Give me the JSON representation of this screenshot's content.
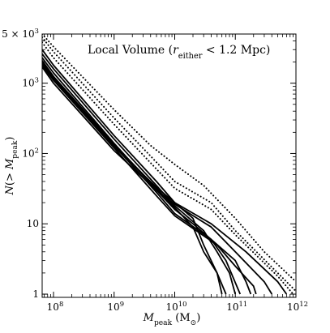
{
  "chart_data": {
    "type": "line",
    "title": "Local Volume ($r_{\\rm either}$ < 1.2 Mpc)",
    "title_parts": {
      "prefix": "Local Volume (",
      "var": "r",
      "sub": "either",
      "suffix": " < 1.2 Mpc)"
    },
    "xlabel": "M_peak (M_⊙)",
    "xlabel_parts": {
      "var": "M",
      "sub": "peak",
      "unit_open": " (M",
      "unit_sub": "⊙",
      "unit_close": ")"
    },
    "ylabel": "N(> M_peak)",
    "ylabel_parts": {
      "prefix": "N(> ",
      "var": "M",
      "sub": "peak",
      "suffix": ")"
    },
    "x_scale": "log",
    "y_scale": "log",
    "xlim": [
      65000000,
      1000000000000
    ],
    "ylim": [
      0.9,
      5000
    ],
    "x_ticks": [
      {
        "value": 100000000,
        "base": "10",
        "exp": "8"
      },
      {
        "value": 1000000000,
        "base": "10",
        "exp": "9"
      },
      {
        "value": 10000000000,
        "base": "10",
        "exp": "10"
      },
      {
        "value": 100000000000,
        "base": "10",
        "exp": "11"
      },
      {
        "value": 1000000000000,
        "base": "10",
        "exp": "12"
      }
    ],
    "y_ticks": [
      {
        "value": 1,
        "label": "1"
      },
      {
        "value": 10,
        "label": "10"
      },
      {
        "value": 100,
        "base": "10",
        "exp": "2"
      },
      {
        "value": 1000,
        "base": "10",
        "exp": "3"
      },
      {
        "value": 5000,
        "base": "5 × 10",
        "exp": "3"
      }
    ],
    "series": [
      {
        "style": "solid",
        "points": [
          [
            65000000.0,
            3000
          ],
          [
            100000000.0,
            1800
          ],
          [
            1000000000.0,
            180
          ],
          [
            5000000000.0,
            40
          ],
          [
            10000000000.0,
            20
          ],
          [
            20000000000.0,
            12
          ],
          [
            30000000000.0,
            5
          ],
          [
            50000000000.0,
            2
          ],
          [
            60000000000.0,
            1
          ]
        ]
      },
      {
        "style": "solid",
        "points": [
          [
            65000000.0,
            2600
          ],
          [
            100000000.0,
            1600
          ],
          [
            1000000000.0,
            160
          ],
          [
            5000000000.0,
            35
          ],
          [
            10000000000.0,
            18
          ],
          [
            30000000000.0,
            8
          ],
          [
            50000000000.0,
            4
          ],
          [
            80000000000.0,
            2
          ],
          [
            100000000000.0,
            1
          ]
        ]
      },
      {
        "style": "solid",
        "points": [
          [
            65000000.0,
            2300
          ],
          [
            100000000.0,
            1400
          ],
          [
            1000000000.0,
            140
          ],
          [
            5000000000.0,
            30
          ],
          [
            10000000000.0,
            16
          ],
          [
            20000000000.0,
            10
          ],
          [
            40000000000.0,
            6
          ],
          [
            70000000000.0,
            3
          ],
          [
            120000000000.0,
            1
          ]
        ]
      },
      {
        "style": "solid",
        "points": [
          [
            65000000.0,
            2000
          ],
          [
            100000000.0,
            1200
          ],
          [
            1000000000.0,
            130
          ],
          [
            5000000000.0,
            28
          ],
          [
            10000000000.0,
            14
          ],
          [
            40000000000.0,
            6
          ],
          [
            100000000000.0,
            3
          ],
          [
            150000000000.0,
            1.5
          ],
          [
            180000000000.0,
            1
          ]
        ]
      },
      {
        "style": "solid",
        "points": [
          [
            65000000.0,
            1800
          ],
          [
            100000000.0,
            1100
          ],
          [
            1000000000.0,
            120
          ],
          [
            5000000000.0,
            25
          ],
          [
            10000000000.0,
            13
          ],
          [
            50000000000.0,
            5
          ],
          [
            100000000000.0,
            2.5
          ],
          [
            200000000000.0,
            1.3
          ],
          [
            220000000000.0,
            1
          ]
        ]
      },
      {
        "style": "solid",
        "points": [
          [
            65000000.0,
            2100
          ],
          [
            100000000.0,
            1250
          ],
          [
            1000000000.0,
            135
          ],
          [
            5000000000.0,
            32
          ],
          [
            10000000000.0,
            17
          ],
          [
            20000000000.0,
            9
          ],
          [
            30000000000.0,
            4
          ],
          [
            50000000000.0,
            2
          ],
          [
            70000000000.0,
            1
          ]
        ]
      },
      {
        "style": "solid",
        "points": [
          [
            65000000.0,
            1700
          ],
          [
            100000000.0,
            1000
          ],
          [
            1000000000.0,
            110
          ],
          [
            5000000000.0,
            30
          ],
          [
            10000000000.0,
            19
          ],
          [
            40000000000.0,
            9
          ],
          [
            100000000000.0,
            4
          ],
          [
            300000000000.0,
            1.5
          ],
          [
            400000000000.0,
            1
          ]
        ]
      },
      {
        "style": "solid",
        "points": [
          [
            65000000.0,
            1900
          ],
          [
            100000000.0,
            1150
          ],
          [
            1000000000.0,
            125
          ],
          [
            5000000000.0,
            33
          ],
          [
            10000000000.0,
            20
          ],
          [
            40000000000.0,
            10
          ],
          [
            150000000000.0,
            4
          ],
          [
            500000000000.0,
            1.5
          ],
          [
            700000000000.0,
            1
          ]
        ]
      },
      {
        "style": "dotted",
        "points": [
          [
            65000000.0,
            4500
          ],
          [
            100000000.0,
            2800
          ],
          [
            1000000000.0,
            320
          ],
          [
            5000000000.0,
            75
          ],
          [
            10000000000.0,
            40
          ],
          [
            40000000000.0,
            20
          ],
          [
            100000000000.0,
            8
          ],
          [
            500000000000.0,
            2
          ],
          [
            1000000000000.0,
            1.1
          ]
        ]
      },
      {
        "style": "dotted",
        "points": [
          [
            65000000.0,
            3800
          ],
          [
            100000000.0,
            2300
          ],
          [
            1000000000.0,
            260
          ],
          [
            5000000000.0,
            60
          ],
          [
            10000000000.0,
            32
          ],
          [
            40000000000.0,
            16
          ],
          [
            100000000000.0,
            7
          ],
          [
            500000000000.0,
            1.8
          ],
          [
            900000000000.0,
            1
          ]
        ]
      },
      {
        "style": "dotted",
        "points": [
          [
            65000000.0,
            5000
          ],
          [
            100000000.0,
            3300
          ],
          [
            1000000000.0,
            420
          ],
          [
            4000000000.0,
            130
          ],
          [
            10000000000.0,
            70
          ],
          [
            30000000000.0,
            35
          ],
          [
            100000000000.0,
            12
          ],
          [
            300000000000.0,
            4
          ],
          [
            1000000000000.0,
            1.5
          ]
        ]
      }
    ]
  }
}
